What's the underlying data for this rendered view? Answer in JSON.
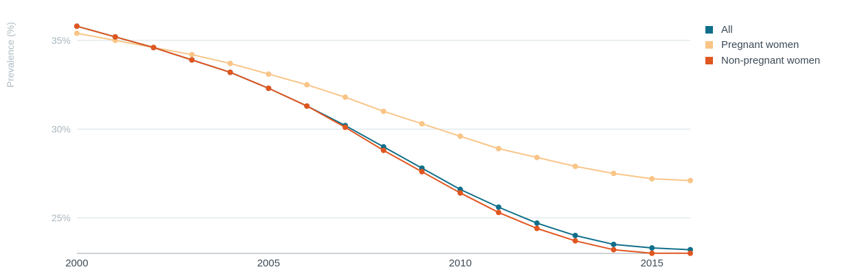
{
  "chart_data": {
    "type": "line",
    "ylabel": "Prevalence (%)",
    "xlabel": "",
    "x": [
      2000,
      2001,
      2002,
      2003,
      2004,
      2005,
      2006,
      2007,
      2008,
      2009,
      2010,
      2011,
      2012,
      2013,
      2014,
      2015,
      2016
    ],
    "xlim": [
      2000,
      2016
    ],
    "ylim": [
      23,
      36
    ],
    "x_ticks": [
      {
        "value": 2000,
        "label": "2000"
      },
      {
        "value": 2005,
        "label": "2005"
      },
      {
        "value": 2010,
        "label": "2010"
      },
      {
        "value": 2015,
        "label": "2015"
      }
    ],
    "y_ticks": [
      {
        "value": 25,
        "label": "25%"
      },
      {
        "value": 30,
        "label": "30%"
      },
      {
        "value": 35,
        "label": "35%"
      }
    ],
    "grid": "horizontal",
    "legend_position": "top-right",
    "series": [
      {
        "name": "All",
        "color": "#0f6f8a",
        "values": [
          35.8,
          35.2,
          34.6,
          33.9,
          33.2,
          32.3,
          31.3,
          30.2,
          29.0,
          27.8,
          26.6,
          25.6,
          24.7,
          24.0,
          23.5,
          23.3,
          23.2
        ]
      },
      {
        "name": "Pregnant women",
        "color": "#f9c587",
        "values": [
          35.4,
          35.0,
          34.6,
          34.2,
          33.7,
          33.1,
          32.5,
          31.8,
          31.0,
          30.3,
          29.6,
          28.9,
          28.4,
          27.9,
          27.5,
          27.2,
          27.1
        ]
      },
      {
        "name": "Non-pregnant women",
        "color": "#e0561f",
        "values": [
          35.8,
          35.2,
          34.6,
          33.9,
          33.2,
          32.3,
          31.3,
          30.1,
          28.8,
          27.6,
          26.4,
          25.3,
          24.4,
          23.7,
          23.2,
          23.0,
          23.0
        ]
      }
    ]
  }
}
